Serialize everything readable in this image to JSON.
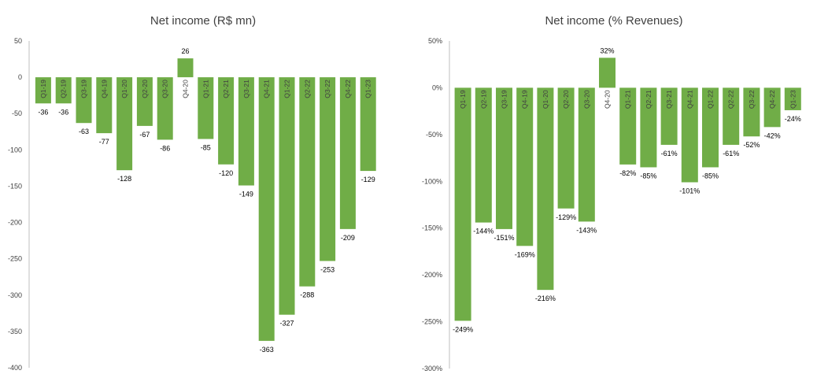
{
  "colors": {
    "bar": "#70ad47",
    "axis": "#bfbfbf",
    "text": "#404040"
  },
  "chart_data": [
    {
      "type": "bar",
      "title": "Net income (R$ mn)",
      "categories": [
        "Q1-19",
        "Q2-19",
        "Q3-19",
        "Q4-19",
        "Q1-20",
        "Q2-20",
        "Q3-20",
        "Q4-20",
        "Q1-21",
        "Q2-21",
        "Q3-21",
        "Q4-21",
        "Q1-22",
        "Q2-22",
        "Q3-22",
        "Q4-22",
        "Q1-23"
      ],
      "values": [
        -36,
        -36,
        -63,
        -77,
        -128,
        -67,
        -86,
        26,
        -85,
        -120,
        -149,
        -363,
        -327,
        -288,
        -253,
        -209,
        -129
      ],
      "data_labels": [
        "-36",
        "-36",
        "-63",
        "-77",
        "-128",
        "-67",
        "-86",
        "26",
        "-85",
        "-120",
        "-149",
        "-363",
        "-327",
        "-288",
        "-253",
        "-209",
        "-129"
      ],
      "yticks": [
        "50",
        "0",
        "-50",
        "-100",
        "-150",
        "-200",
        "-250",
        "-300",
        "-350",
        "-400"
      ],
      "ylim": [
        -400,
        50
      ],
      "ytick_step": 50,
      "grid": false,
      "legend": "none"
    },
    {
      "type": "bar",
      "title": "Net income (% Revenues)",
      "categories": [
        "Q1-19",
        "Q2-19",
        "Q3-19",
        "Q4-19",
        "Q1-20",
        "Q2-20",
        "Q3-20",
        "Q4-20",
        "Q1-21",
        "Q2-21",
        "Q3-21",
        "Q4-21",
        "Q1-22",
        "Q2-22",
        "Q3-22",
        "Q4-22",
        "Q1-23"
      ],
      "values": [
        -249,
        -144,
        -151,
        -169,
        -216,
        -129,
        -143,
        32,
        -82,
        -85,
        -61,
        -101,
        -85,
        -61,
        -52,
        -42,
        -24
      ],
      "data_labels": [
        "-249%",
        "-144%",
        "-151%",
        "-169%",
        "-216%",
        "-129%",
        "-143%",
        "32%",
        "-82%",
        "-85%",
        "-61%",
        "-101%",
        "-85%",
        "-61%",
        "-52%",
        "-42%",
        "-24%"
      ],
      "yticks": [
        "50%",
        "0%",
        "-50%",
        "-100%",
        "-150%",
        "-200%",
        "-250%",
        "-300%"
      ],
      "ylim": [
        -300,
        50
      ],
      "ytick_step": 50,
      "grid": false,
      "legend": "none"
    }
  ]
}
